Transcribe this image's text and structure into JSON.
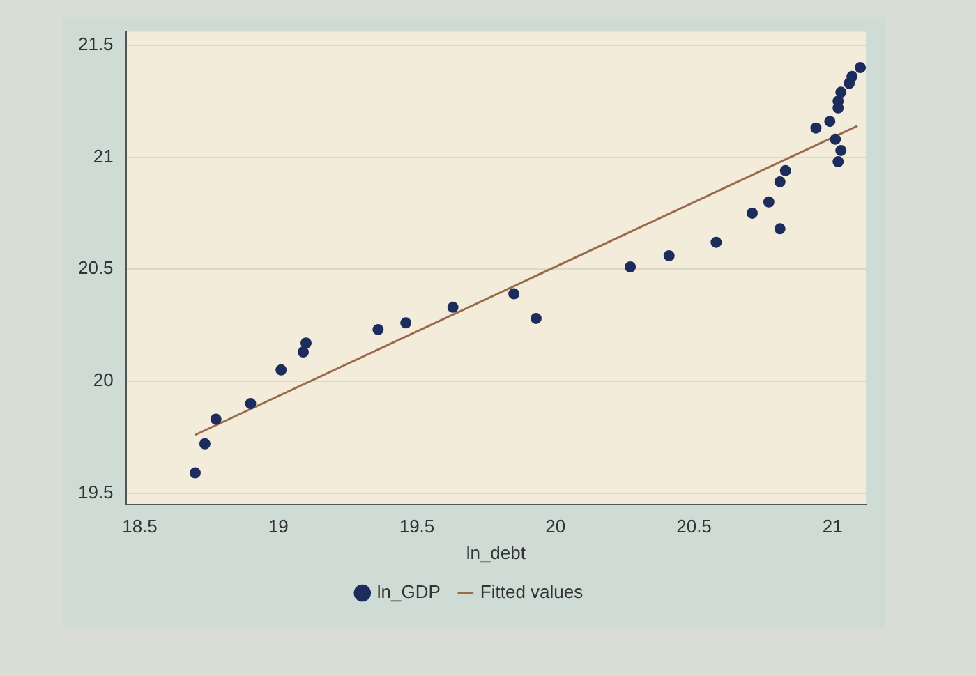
{
  "chart_data": {
    "type": "scatter",
    "xlabel": "ln_debt",
    "series": [
      {
        "name": "ln_GDP",
        "marker": "circle",
        "color": "#1c2c5c",
        "x": [
          18.7,
          18.735,
          18.775,
          18.9,
          19.01,
          19.09,
          19.1,
          19.36,
          19.46,
          19.63,
          19.85,
          19.93,
          20.27,
          20.41,
          20.58,
          20.71,
          20.77,
          20.81,
          20.81,
          20.83,
          20.94,
          20.99,
          21.01,
          21.02,
          21.03,
          21.02,
          21.02,
          21.03,
          21.06,
          21.07,
          21.1
        ],
        "values": [
          19.59,
          19.72,
          19.83,
          19.9,
          20.05,
          20.13,
          20.17,
          20.23,
          20.26,
          20.33,
          20.39,
          20.28,
          20.51,
          20.56,
          20.62,
          20.75,
          20.8,
          20.89,
          20.68,
          20.94,
          21.13,
          21.16,
          21.08,
          20.98,
          21.03,
          21.22,
          21.25,
          21.29,
          21.33,
          21.36,
          21.4
        ]
      },
      {
        "name": "Fitted values",
        "type": "line",
        "color": "#9a6a4c",
        "x": [
          18.7,
          21.09
        ],
        "values": [
          19.76,
          21.14
        ]
      }
    ],
    "xlim": [
      18.45,
      21.12
    ],
    "ylim": [
      19.45,
      21.56
    ],
    "xticks": [
      18.5,
      19,
      19.5,
      20,
      20.5,
      21
    ],
    "yticks": [
      19.5,
      20,
      20.5,
      21,
      21.5
    ],
    "grid": "y",
    "legend": "bottom"
  }
}
